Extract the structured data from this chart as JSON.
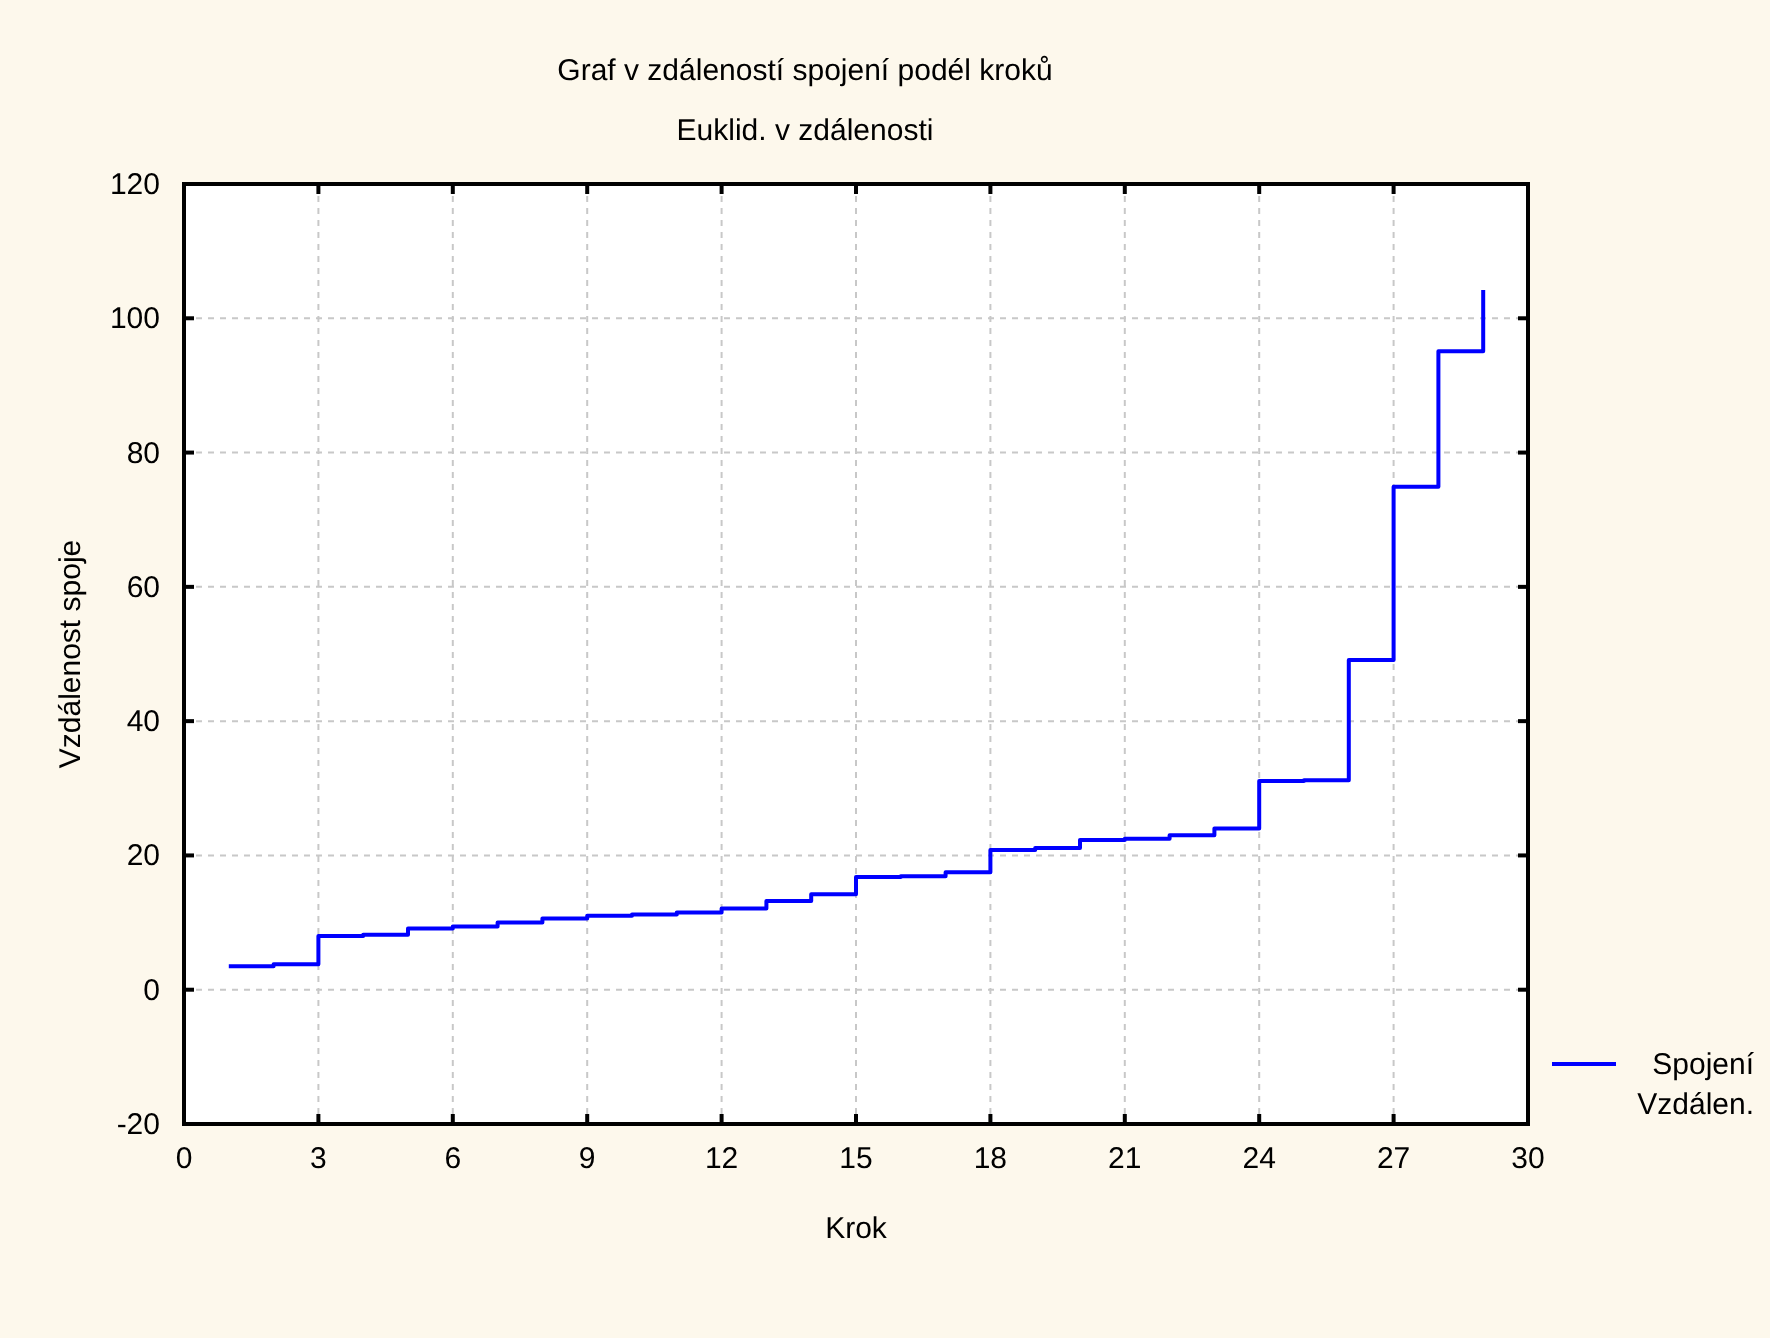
{
  "chart_data": {
    "type": "step",
    "title": "Graf v zdáleností spojení podél kroků",
    "subtitle": "Euklid. v zdálenosti",
    "xlabel": "Krok",
    "ylabel": "Vzdálenost spoje",
    "x": [
      1,
      2,
      3,
      4,
      5,
      6,
      7,
      8,
      9,
      10,
      11,
      12,
      13,
      14,
      15,
      16,
      17,
      18,
      19,
      20,
      21,
      22,
      23,
      24,
      25,
      26,
      27,
      28,
      29
    ],
    "series": [
      {
        "name": "Spojení Vzdálen.",
        "color": "#0000ff",
        "values": [
          3.5,
          3.8,
          8.0,
          8.2,
          9.1,
          9.4,
          10.0,
          10.6,
          11.0,
          11.2,
          11.5,
          12.1,
          13.2,
          14.2,
          16.8,
          16.9,
          17.5,
          20.8,
          21.1,
          22.3,
          22.5,
          23.0,
          24.0,
          31.1,
          31.2,
          49.1,
          74.9,
          95.1,
          104.2
        ]
      }
    ],
    "xlim": [
      0,
      30
    ],
    "xticks": [
      0,
      3,
      6,
      9,
      12,
      15,
      18,
      21,
      24,
      27,
      30
    ],
    "ylim": [
      -20,
      120
    ],
    "yticks": [
      -20,
      0,
      20,
      40,
      60,
      80,
      100,
      120
    ],
    "grid": true,
    "legend": "bottom right",
    "line_style": "solid",
    "marker": "none"
  }
}
